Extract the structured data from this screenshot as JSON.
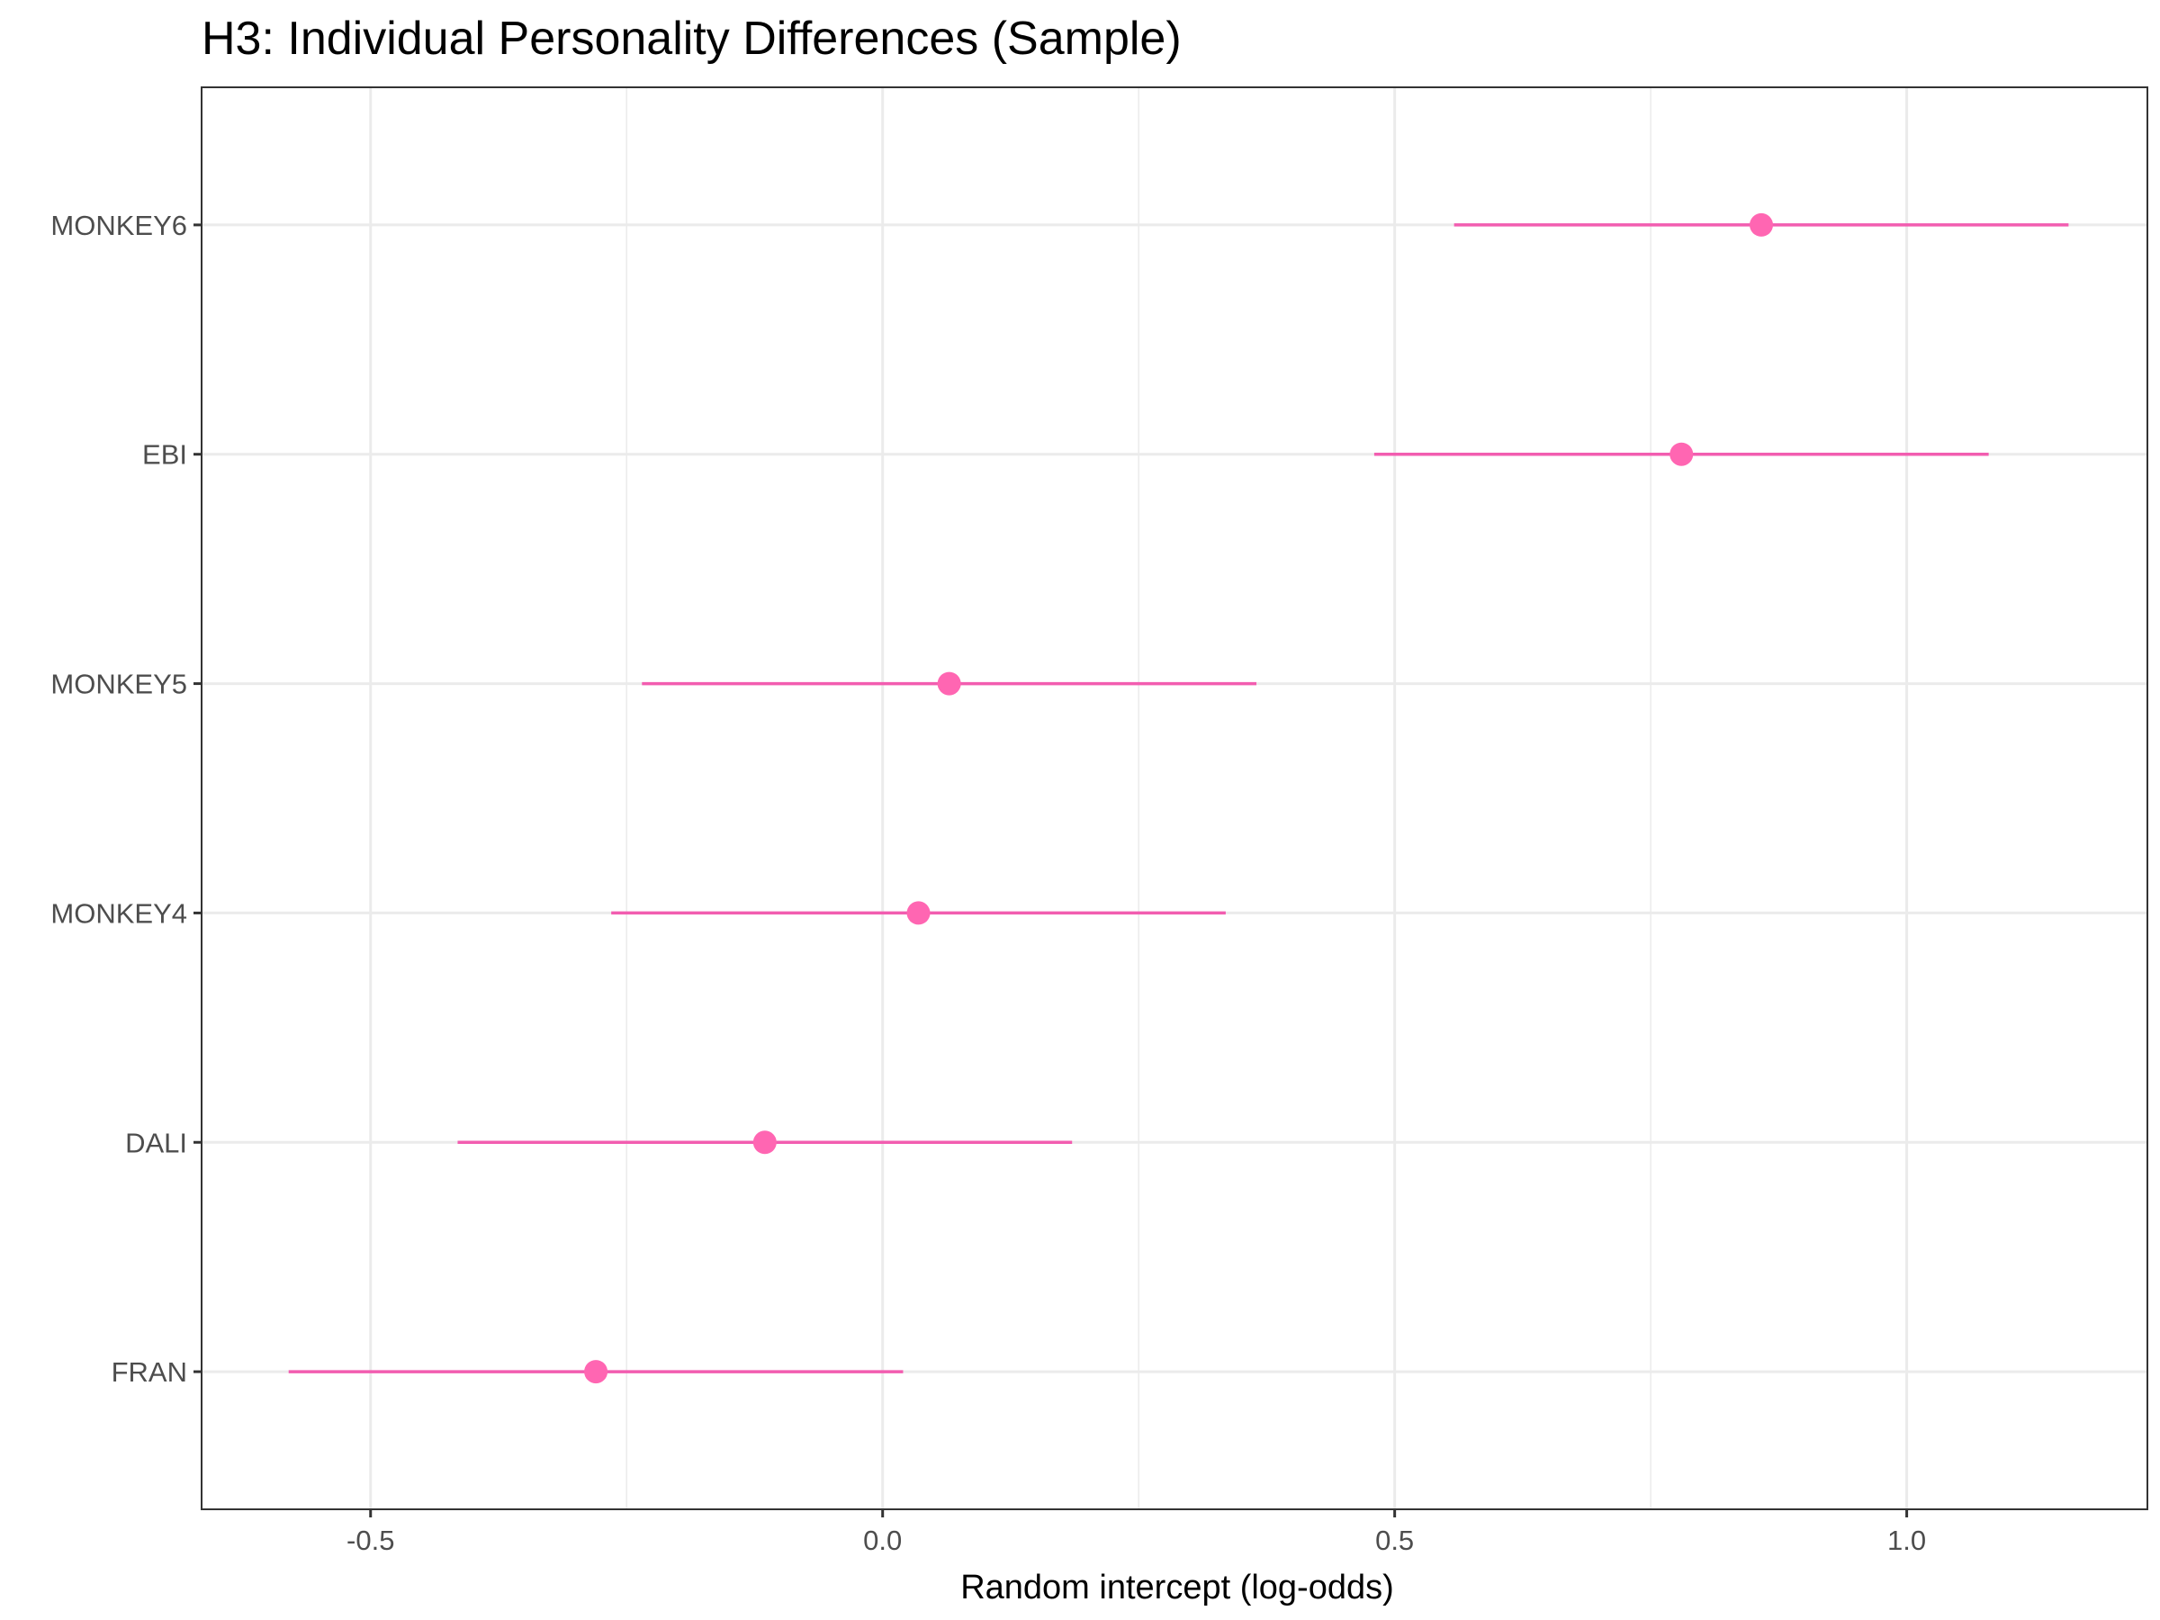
{
  "chart_data": {
    "type": "scatter",
    "title": "H3: Individual Personality Differences (Sample)",
    "xlabel": "Random intercept (log-odds)",
    "ylabel": "",
    "xlim": [
      -0.665,
      1.235
    ],
    "x_ticks": [
      -0.5,
      0.0,
      0.5,
      1.0
    ],
    "x_tick_labels": [
      "-0.5",
      "0.0",
      "0.5",
      "1.0"
    ],
    "grid": true,
    "legend": "none",
    "colors": {
      "point": "#ff66b2",
      "line": "#f25db0",
      "grid": "#ebebeb",
      "border": "#333333"
    },
    "categories": [
      "FRAN",
      "DALI",
      "MONKEY4",
      "MONKEY5",
      "EBI",
      "MONKEY6"
    ],
    "points": [
      {
        "label": "FRAN",
        "estimate": -0.28,
        "lower": -0.58,
        "upper": 0.02
      },
      {
        "label": "DALI",
        "estimate": -0.115,
        "lower": -0.415,
        "upper": 0.185
      },
      {
        "label": "MONKEY4",
        "estimate": 0.035,
        "lower": -0.265,
        "upper": 0.335
      },
      {
        "label": "MONKEY5",
        "estimate": 0.065,
        "lower": -0.235,
        "upper": 0.365
      },
      {
        "label": "EBI",
        "estimate": 0.78,
        "lower": 0.48,
        "upper": 1.08
      },
      {
        "label": "MONKEY6",
        "estimate": 0.858,
        "lower": 0.558,
        "upper": 1.158
      }
    ]
  }
}
